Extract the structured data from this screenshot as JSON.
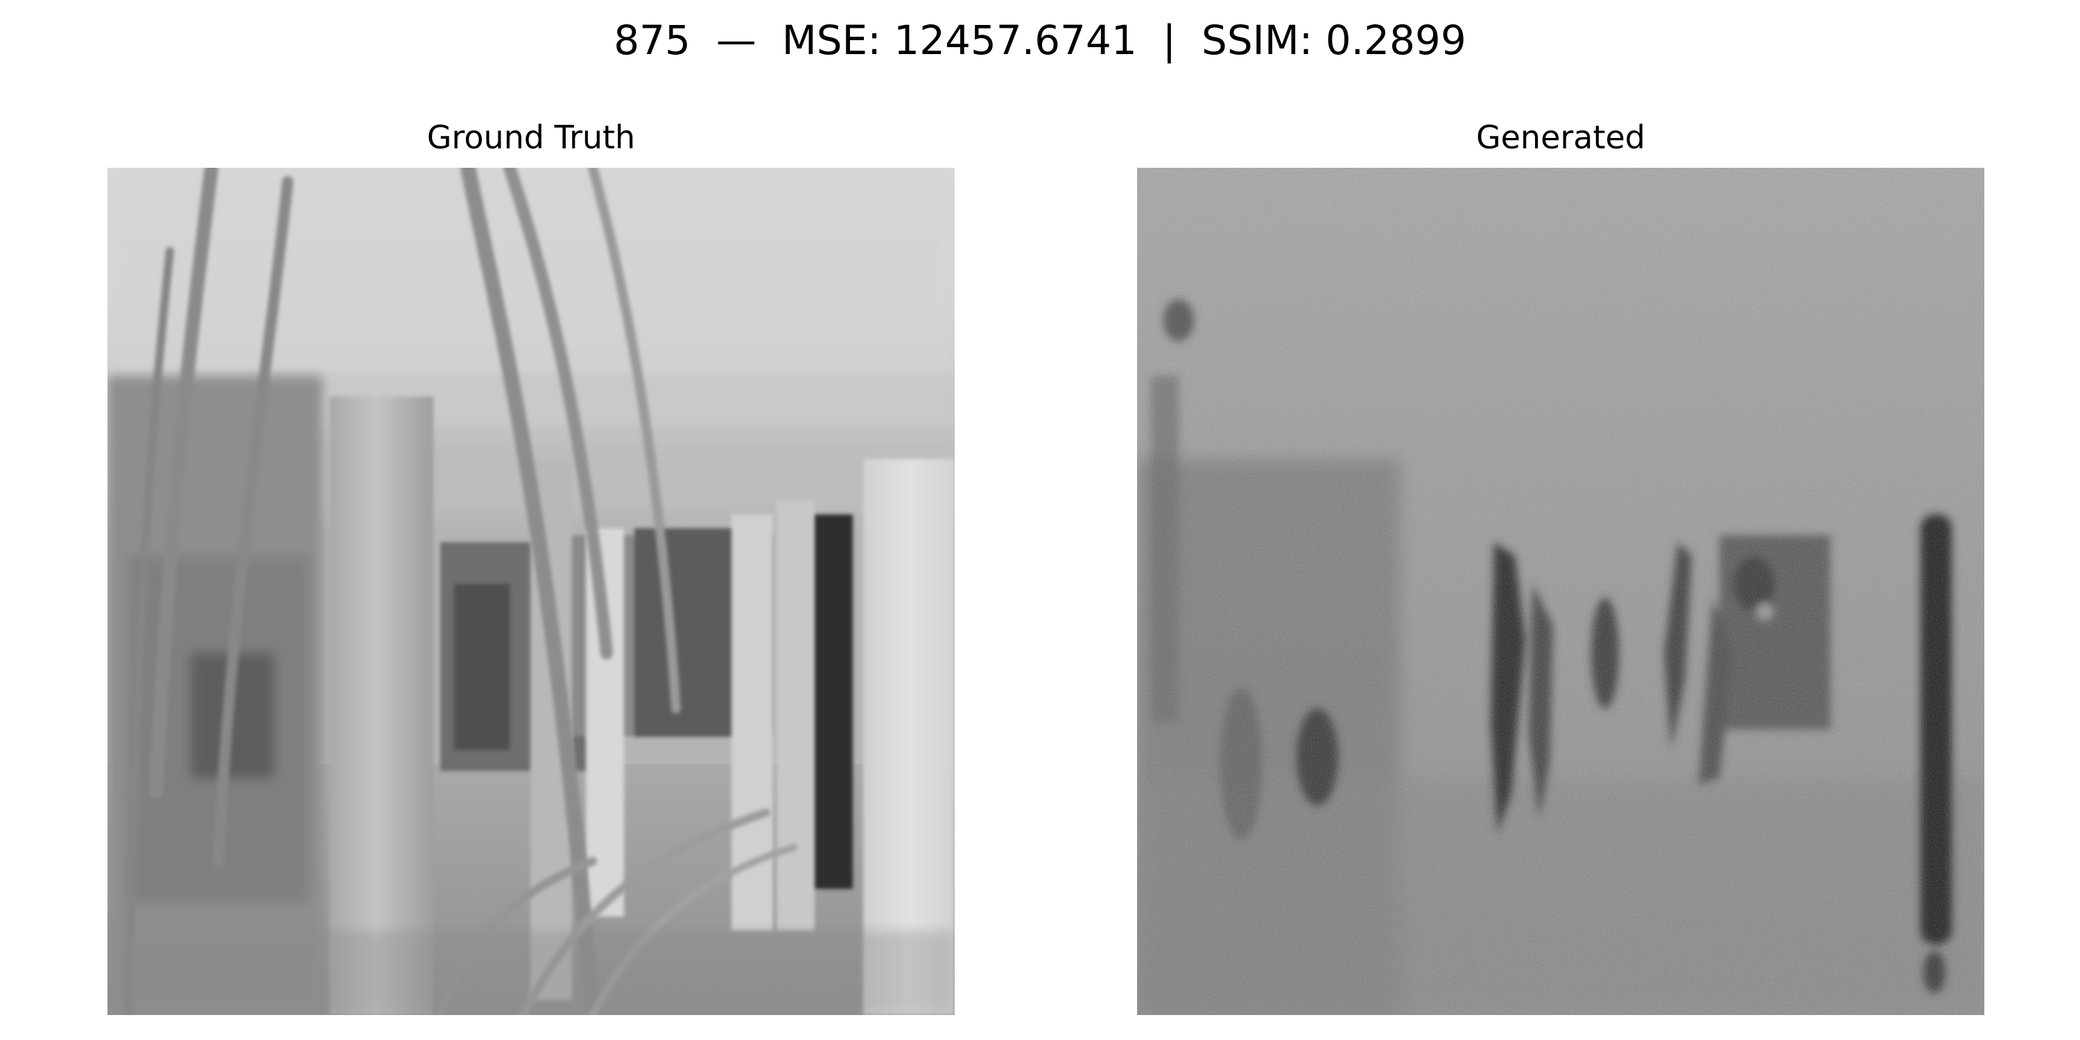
{
  "figure": {
    "suptitle": "875  —  MSE: 12457.6741  |  SSIM: 0.2899",
    "sample_id": "875",
    "metrics": {
      "mse": 12457.6741,
      "ssim": 0.2899
    }
  },
  "panels": [
    {
      "title": "Ground Truth",
      "content": "grayscale photo"
    },
    {
      "title": "Generated",
      "content": "noisy grayscale image"
    }
  ],
  "colors": {
    "background": "#ffffff",
    "text": "#000000"
  }
}
